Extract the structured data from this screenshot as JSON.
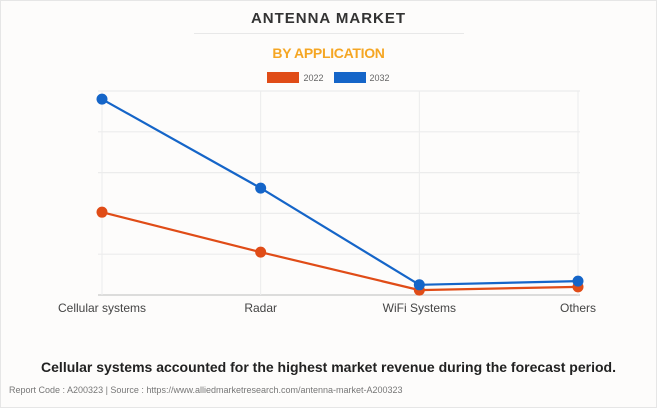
{
  "header": {
    "title": "ANTENNA MARKET",
    "subtitle": "BY APPLICATION"
  },
  "chart_data": {
    "type": "line",
    "categories": [
      "Cellular systems",
      "Radar",
      "WiFi Systems",
      "Others"
    ],
    "series": [
      {
        "name": "2022",
        "color": "#e04c17",
        "values": [
          2.03,
          1.05,
          0.12,
          0.2
        ]
      },
      {
        "name": "2032",
        "color": "#1565c8",
        "values": [
          4.8,
          2.62,
          0.25,
          0.34
        ]
      }
    ],
    "ylim": [
      0,
      5
    ],
    "grid": true,
    "legend": "top-center",
    "ylabel": "",
    "xlabel": ""
  },
  "insight": "Cellular systems accounted for the highest market revenue during the forecast period.",
  "footer": {
    "text": "Report Code : A200323  |  Source : https://www.alliedmarketresearch.com/antenna-market-A200323"
  }
}
